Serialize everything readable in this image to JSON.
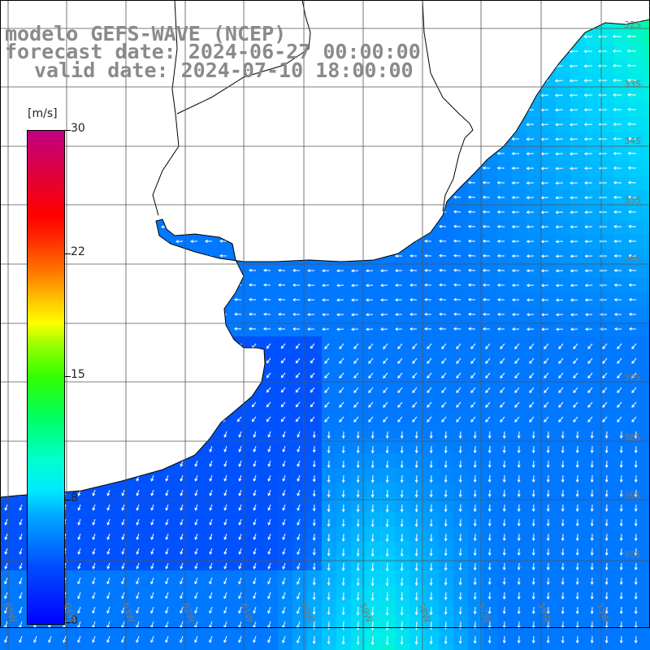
{
  "title": {
    "line1": "modelo GEFS-WAVE (NCEP)",
    "line2": "forecast date: 2024-06-27 00:00:00",
    "line3": "valid date: 2024-07-10 18:00:00"
  },
  "colorbar": {
    "unit": "[m/s]",
    "ticks": [
      {
        "label": "30",
        "value": 30
      },
      {
        "label": "22",
        "value": 22
      },
      {
        "label": "15",
        "value": 15
      },
      {
        "label": "8",
        "value": 8
      },
      {
        "label": "0",
        "value": 0
      }
    ],
    "min": 0,
    "max": 30
  },
  "axes": {
    "lon_labels": [
      "65W",
      "64W",
      "63W",
      "62W",
      "61W",
      "60W",
      "59W",
      "58W",
      "57W",
      "56W",
      "55W"
    ],
    "lat_labels": [
      "32S",
      "33S",
      "34S",
      "35S",
      "36S",
      "37S",
      "38S",
      "39S",
      "40S"
    ]
  },
  "colors": {
    "land": "#ffffff",
    "coast": "#000000",
    "grid": "#555555",
    "arrow": "#ffffff"
  }
}
